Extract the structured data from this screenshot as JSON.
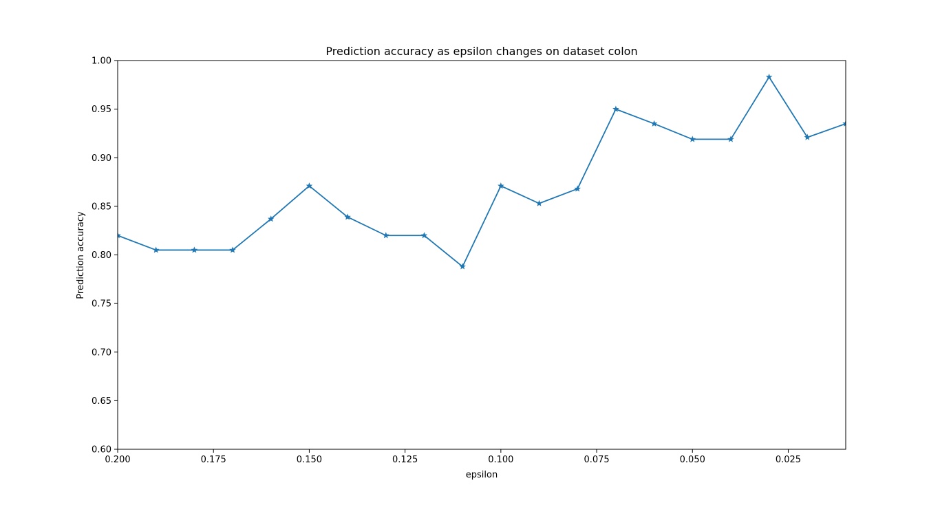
{
  "chart_data": {
    "type": "line",
    "title": "Prediction accuracy as epsilon changes on dataset colon",
    "xlabel": "epsilon",
    "ylabel": "Prediction accuracy",
    "xlim": [
      0.2,
      0.01
    ],
    "ylim": [
      0.6,
      1.0
    ],
    "x_inverted": true,
    "grid": false,
    "xticks": [
      0.2,
      0.175,
      0.15,
      0.125,
      0.1,
      0.075,
      0.05,
      0.025
    ],
    "xtick_labels": [
      "0.200",
      "0.175",
      "0.150",
      "0.125",
      "0.100",
      "0.075",
      "0.050",
      "0.025"
    ],
    "yticks": [
      0.6,
      0.65,
      0.7,
      0.75,
      0.8,
      0.85,
      0.9,
      0.95,
      1.0
    ],
    "ytick_labels": [
      "0.60",
      "0.65",
      "0.70",
      "0.75",
      "0.80",
      "0.85",
      "0.90",
      "0.95",
      "1.00"
    ],
    "series": [
      {
        "color": "#1f77b4",
        "marker": "star",
        "x": [
          0.2,
          0.19,
          0.18,
          0.17,
          0.16,
          0.15,
          0.14,
          0.13,
          0.12,
          0.11,
          0.1,
          0.09,
          0.08,
          0.07,
          0.06,
          0.05,
          0.04,
          0.03,
          0.02,
          0.01
        ],
        "y": [
          0.82,
          0.805,
          0.805,
          0.805,
          0.837,
          0.871,
          0.839,
          0.82,
          0.82,
          0.788,
          0.871,
          0.853,
          0.868,
          0.95,
          0.935,
          0.919,
          0.919,
          0.983,
          0.921,
          0.935
        ]
      }
    ]
  }
}
